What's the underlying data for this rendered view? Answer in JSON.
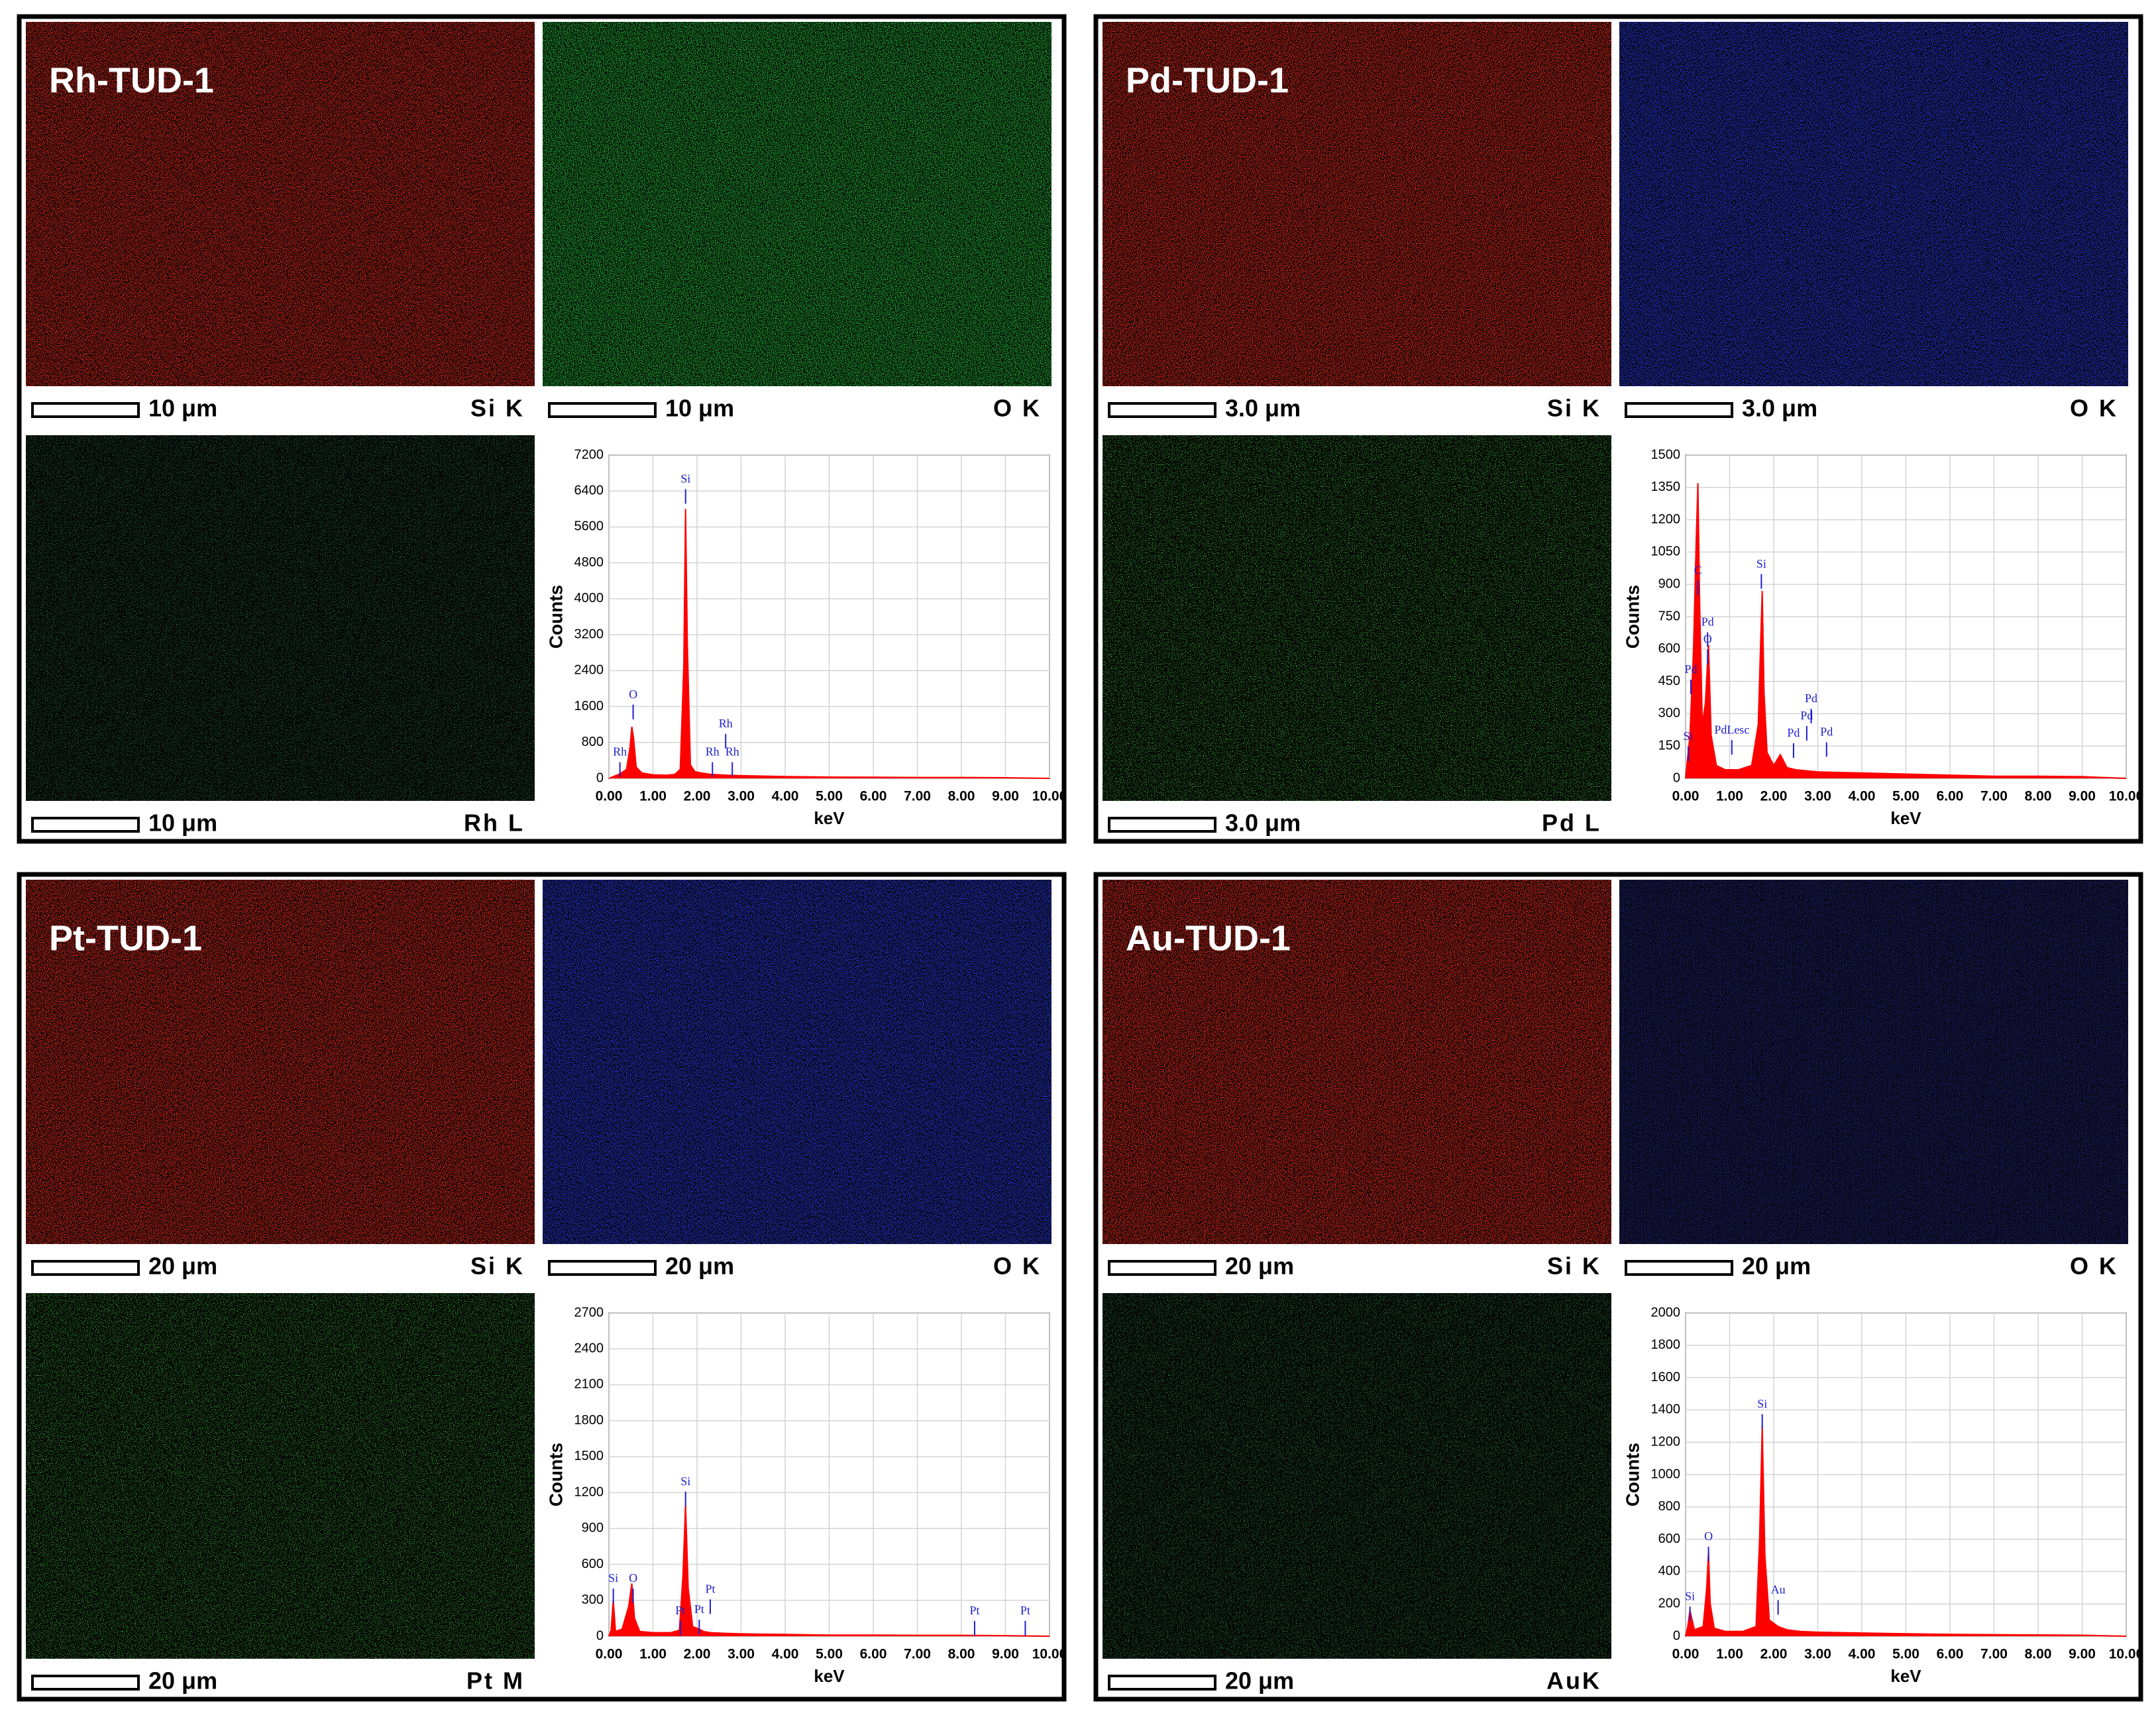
{
  "panels": [
    {
      "title": "Rh-TUD-1",
      "maps": [
        {
          "scale": "10 μm",
          "element": "Si K",
          "color": "#ff2a1e"
        },
        {
          "scale": "10 μm",
          "element": "O K",
          "color": "#22c83a"
        },
        {
          "scale": "10 μm",
          "element": "Rh L",
          "color": "#2e8a4a"
        }
      ]
    },
    {
      "title": "Pd-TUD-1",
      "maps": [
        {
          "scale": "3.0 μm",
          "element": "Si K",
          "color": "#ff2a1e"
        },
        {
          "scale": "3.0 μm",
          "element": "O K",
          "color": "#2a3cff"
        },
        {
          "scale": "3.0 μm",
          "element": "Pd L",
          "color": "#3cd03c"
        }
      ]
    },
    {
      "title": "Pt-TUD-1",
      "maps": [
        {
          "scale": "20 μm",
          "element": "Si K",
          "color": "#ff2a1e"
        },
        {
          "scale": "20 μm",
          "element": "O K",
          "color": "#2a3cff"
        },
        {
          "scale": "20 μm",
          "element": "Pt M",
          "color": "#3cd03c"
        }
      ]
    },
    {
      "title": "Au-TUD-1",
      "maps": [
        {
          "scale": "20 μm",
          "element": "Si K",
          "color": "#ff2a1e"
        },
        {
          "scale": "20 μm",
          "element": "O K",
          "color": "#24248a"
        },
        {
          "scale": "20 μm",
          "element": "AuK",
          "color": "#2e9a4a"
        }
      ]
    }
  ],
  "chart_data": [
    {
      "type": "area",
      "x_label": "keV",
      "y_label": "Counts",
      "color": "#ff0000",
      "grid": true,
      "x": [
        0,
        0.15,
        0.25,
        0.4,
        0.48,
        0.52,
        0.56,
        0.62,
        0.75,
        1.0,
        1.3,
        1.5,
        1.62,
        1.7,
        1.74,
        1.78,
        1.85,
        1.95,
        2.1,
        2.3,
        2.7,
        3.0,
        4.0,
        5.0,
        6.0,
        7.0,
        8.0,
        9.0,
        10.0
      ],
      "values": [
        0,
        60,
        100,
        200,
        700,
        1150,
        900,
        250,
        120,
        80,
        70,
        90,
        200,
        2500,
        6000,
        3000,
        300,
        150,
        120,
        90,
        70,
        60,
        40,
        30,
        25,
        20,
        20,
        15,
        0
      ],
      "xlim": [
        0,
        10
      ],
      "ylim": [
        0,
        7200
      ],
      "xticks": [
        {
          "value": 0,
          "label": "0.00"
        },
        {
          "value": 1,
          "label": "1.00"
        },
        {
          "value": 2,
          "label": "2.00"
        },
        {
          "value": 3,
          "label": "3.00"
        },
        {
          "value": 4,
          "label": "4.00"
        },
        {
          "value": 5,
          "label": "5.00"
        },
        {
          "value": 6,
          "label": "6.00"
        },
        {
          "value": 7,
          "label": "7.00"
        },
        {
          "value": 8,
          "label": "8.00"
        },
        {
          "value": 9,
          "label": "9.00"
        },
        {
          "value": 10,
          "label": "10.00"
        }
      ],
      "yticks": [
        0,
        800,
        1600,
        2400,
        3200,
        4000,
        4800,
        5600,
        6400,
        7200
      ],
      "annotations": [
        {
          "text": "Rh",
          "x": 0.25,
          "y": 420
        },
        {
          "text": "O",
          "x": 0.55,
          "y": 1700
        },
        {
          "text": "Si",
          "x": 1.74,
          "y": 6500
        },
        {
          "text": "Rh",
          "x": 2.35,
          "y": 420
        },
        {
          "text": "Rh",
          "x": 2.65,
          "y": 1050
        },
        {
          "text": "Rh",
          "x": 2.8,
          "y": 420
        }
      ]
    },
    {
      "type": "area",
      "x_label": "keV",
      "y_label": "Counts",
      "color": "#ff0000",
      "grid": true,
      "x": [
        0,
        0.1,
        0.18,
        0.24,
        0.28,
        0.32,
        0.38,
        0.45,
        0.52,
        0.58,
        0.7,
        0.9,
        1.2,
        1.5,
        1.65,
        1.7,
        1.74,
        1.78,
        1.85,
        2.0,
        2.15,
        2.3,
        2.5,
        3.0,
        4,
        5,
        6,
        7,
        8,
        9,
        10
      ],
      "values": [
        0,
        200,
        600,
        1100,
        1370,
        800,
        250,
        350,
        620,
        200,
        60,
        40,
        40,
        60,
        250,
        600,
        870,
        400,
        120,
        60,
        110,
        50,
        40,
        30,
        25,
        20,
        15,
        10,
        10,
        8,
        0
      ],
      "xlim": [
        0,
        10
      ],
      "ylim": [
        0,
        1500
      ],
      "xticks": [
        {
          "value": 0,
          "label": "0.00"
        },
        {
          "value": 1,
          "label": "1.00"
        },
        {
          "value": 2,
          "label": "2.00"
        },
        {
          "value": 3,
          "label": "3.00"
        },
        {
          "value": 4,
          "label": "4.00"
        },
        {
          "value": 5,
          "label": "5.00"
        },
        {
          "value": 6,
          "label": "6.00"
        },
        {
          "value": 7,
          "label": "7.00"
        },
        {
          "value": 8,
          "label": "8.00"
        },
        {
          "value": 9,
          "label": "9.00"
        },
        {
          "value": 10,
          "label": "10.00"
        }
      ],
      "yticks": [
        0,
        150,
        300,
        450,
        600,
        750,
        900,
        1050,
        1200,
        1350,
        1500
      ],
      "annotations": [
        {
          "text": "Si",
          "x": 0.06,
          "y": 160
        },
        {
          "text": "Pd",
          "x": 0.12,
          "y": 470
        },
        {
          "text": "C",
          "x": 0.28,
          "y": 930
        },
        {
          "text": "Pd",
          "x": 0.5,
          "y": 690
        },
        {
          "text": "O",
          "x": 0.5,
          "y": 610
        },
        {
          "text": "PdLesc",
          "x": 1.05,
          "y": 190
        },
        {
          "text": "Pd",
          "x": 2.45,
          "y": 175
        },
        {
          "text": "Pd",
          "x": 2.75,
          "y": 255
        },
        {
          "text": "Pd",
          "x": 2.85,
          "y": 335
        },
        {
          "text": "Pd",
          "x": 3.2,
          "y": 180
        },
        {
          "text": "Si",
          "x": 1.72,
          "y": 960
        }
      ]
    },
    {
      "type": "area",
      "x_label": "keV",
      "y_label": "Counts",
      "color": "#ff0000",
      "grid": true,
      "x": [
        0,
        0.05,
        0.1,
        0.15,
        0.3,
        0.45,
        0.52,
        0.58,
        0.7,
        1.0,
        1.4,
        1.6,
        1.68,
        1.74,
        1.8,
        1.9,
        2.05,
        2.15,
        2.3,
        2.6,
        3,
        4,
        5,
        6,
        7,
        8,
        9,
        10
      ],
      "values": [
        0,
        50,
        300,
        40,
        60,
        250,
        440,
        150,
        40,
        30,
        30,
        50,
        500,
        1100,
        400,
        80,
        60,
        40,
        30,
        25,
        20,
        15,
        10,
        10,
        8,
        8,
        5,
        0
      ],
      "xlim": [
        0,
        10
      ],
      "ylim": [
        0,
        2700
      ],
      "xticks": [
        {
          "value": 0,
          "label": "0.00"
        },
        {
          "value": 1,
          "label": "1.00"
        },
        {
          "value": 2,
          "label": "2.00"
        },
        {
          "value": 3,
          "label": "3.00"
        },
        {
          "value": 4,
          "label": "4.00"
        },
        {
          "value": 5,
          "label": "5.00"
        },
        {
          "value": 6,
          "label": "6.00"
        },
        {
          "value": 7,
          "label": "7.00"
        },
        {
          "value": 8,
          "label": "8.00"
        },
        {
          "value": 9,
          "label": "9.00"
        },
        {
          "value": 10,
          "label": "10.00"
        }
      ],
      "yticks": [
        0,
        300,
        600,
        900,
        1200,
        1500,
        1800,
        2100,
        2400,
        2700
      ],
      "annotations": [
        {
          "text": "Si",
          "x": 0.1,
          "y": 420
        },
        {
          "text": "O",
          "x": 0.55,
          "y": 420
        },
        {
          "text": "Si",
          "x": 1.74,
          "y": 1230
        },
        {
          "text": "Pt",
          "x": 1.62,
          "y": 150
        },
        {
          "text": "Pt",
          "x": 2.05,
          "y": 160
        },
        {
          "text": "Pt",
          "x": 2.3,
          "y": 330
        },
        {
          "text": "Pt",
          "x": 8.3,
          "y": 150
        },
        {
          "text": "Pt",
          "x": 9.45,
          "y": 150
        }
      ]
    },
    {
      "type": "area",
      "x_label": "keV",
      "y_label": "Counts",
      "color": "#ff0000",
      "grid": true,
      "x": [
        0,
        0.05,
        0.1,
        0.2,
        0.4,
        0.48,
        0.52,
        0.56,
        0.65,
        0.9,
        1.3,
        1.6,
        1.68,
        1.74,
        1.8,
        1.9,
        2.1,
        2.3,
        2.6,
        3,
        4,
        5,
        6,
        7,
        8,
        9,
        10
      ],
      "values": [
        0,
        60,
        160,
        40,
        60,
        300,
        520,
        200,
        50,
        30,
        30,
        60,
        600,
        1300,
        500,
        100,
        60,
        40,
        30,
        25,
        20,
        15,
        12,
        10,
        8,
        6,
        0
      ],
      "xlim": [
        0,
        10
      ],
      "ylim": [
        0,
        2000
      ],
      "xticks": [
        {
          "value": 0,
          "label": "0.00"
        },
        {
          "value": 1,
          "label": "1.00"
        },
        {
          "value": 2,
          "label": "2.00"
        },
        {
          "value": 3,
          "label": "3.00"
        },
        {
          "value": 4,
          "label": "4.00"
        },
        {
          "value": 5,
          "label": "5.00"
        },
        {
          "value": 6,
          "label": "6.00"
        },
        {
          "value": 7,
          "label": "7.00"
        },
        {
          "value": 8,
          "label": "8.00"
        },
        {
          "value": 9,
          "label": "9.00"
        },
        {
          "value": 10,
          "label": "10.00"
        }
      ],
      "yticks": [
        0,
        200,
        400,
        600,
        800,
        1000,
        1200,
        1400,
        1600,
        1800,
        2000
      ],
      "annotations": [
        {
          "text": "Si",
          "x": 0.1,
          "y": 200
        },
        {
          "text": "O",
          "x": 0.52,
          "y": 570
        },
        {
          "text": "Si",
          "x": 1.74,
          "y": 1390
        },
        {
          "text": "Au",
          "x": 2.1,
          "y": 240
        }
      ]
    }
  ]
}
